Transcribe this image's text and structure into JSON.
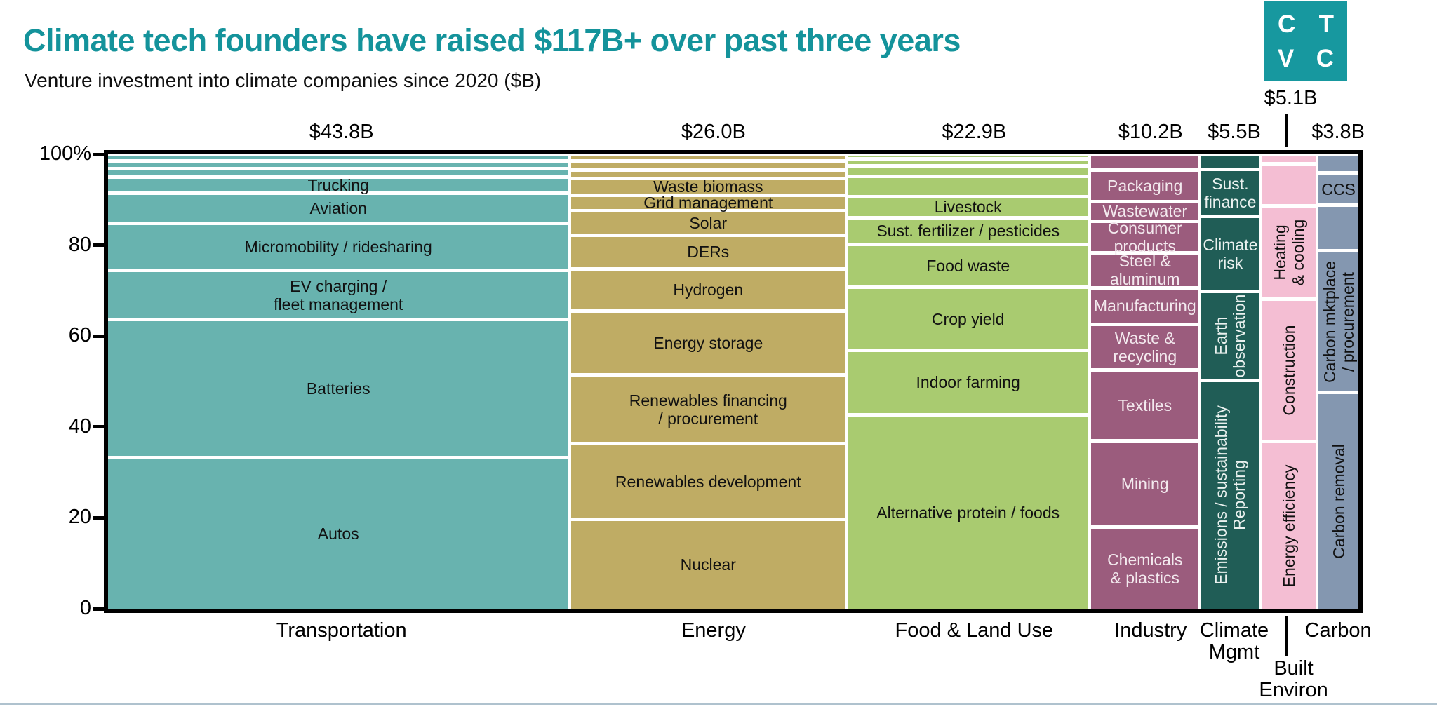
{
  "header": {
    "title": "Climate tech founders have raised $117B+ over past three years",
    "subtitle": "Venture investment into climate companies since 2020 ($B)"
  },
  "logo": {
    "row1_left": "C",
    "row1_right": "T",
    "row2_left": "V",
    "row2_right": "C",
    "bg_color": "#17989F"
  },
  "colors": {
    "title_text": "#14939B",
    "axis_frame": "#000000",
    "footer_rule": "#AFC2CE"
  },
  "y_axis": {
    "tick_labels": [
      "100%",
      "80",
      "60",
      "40",
      "20",
      "0"
    ],
    "tick_values": [
      100,
      80,
      60,
      40,
      20,
      0
    ]
  },
  "callouts": {
    "built_value_label": "$5.1B",
    "built_category_label": "Built\nEnviron"
  },
  "chart_data": {
    "type": "mekko",
    "title": "Climate tech founders have raised $117B+ over past three years",
    "subtitle": "Venture investment into climate companies since 2020 ($B)",
    "x_unit": "column width proportional to $B raised",
    "y_unit": "% of column total",
    "ylim": [
      0,
      100
    ],
    "total_billions": 117.3,
    "columns": [
      {
        "category": "Transportation",
        "value_label": "$43.8B",
        "value": 43.8,
        "color": "#68B3AF",
        "text_color": "#111111",
        "segments": [
          {
            "label": "",
            "pct": 1.8
          },
          {
            "label": "",
            "pct": 1.8
          },
          {
            "label": "",
            "pct": 1.8
          },
          {
            "label": "Trucking",
            "pct": 3.6
          },
          {
            "label": "Aviation",
            "pct": 6.6
          },
          {
            "label": "Micromobility / ridesharing",
            "pct": 10.4
          },
          {
            "label": "EV charging /\nfleet management",
            "pct": 10.7
          },
          {
            "label": "Batteries",
            "pct": 30.4
          },
          {
            "label": "Autos",
            "pct": 32.9
          }
        ]
      },
      {
        "category": "Energy",
        "value_label": "$26.0B",
        "value": 26.0,
        "color": "#BFAC64",
        "text_color": "#111111",
        "segments": [
          {
            "label": "",
            "pct": 1.9
          },
          {
            "label": "",
            "pct": 1.9
          },
          {
            "label": "",
            "pct": 1.9
          },
          {
            "label": "Waste biomass",
            "pct": 3.7
          },
          {
            "label": "Grid management",
            "pct": 3.4
          },
          {
            "label": "Solar",
            "pct": 5.4
          },
          {
            "label": "DERs",
            "pct": 7.4
          },
          {
            "label": "Hydrogen",
            "pct": 9.3
          },
          {
            "label": "Energy storage",
            "pct": 14.0
          },
          {
            "label": "Renewables financing\n/ procurement",
            "pct": 15.2
          },
          {
            "label": "Renewables development",
            "pct": 16.6
          },
          {
            "label": "Nuclear",
            "pct": 19.3
          }
        ]
      },
      {
        "category": "Food & Land Use",
        "value_label": "$22.9B",
        "value": 22.9,
        "color": "#A9CB70",
        "text_color": "#111111",
        "segments": [
          {
            "label": "",
            "pct": 1.4
          },
          {
            "label": "",
            "pct": 1.6
          },
          {
            "label": "",
            "pct": 2.2
          },
          {
            "label": "",
            "pct": 4.5
          },
          {
            "label": "Livestock",
            "pct": 4.6
          },
          {
            "label": "Sust. fertilizer / pesticides",
            "pct": 5.9
          },
          {
            "label": "Food waste",
            "pct": 9.5
          },
          {
            "label": "Crop yield",
            "pct": 13.8
          },
          {
            "label": "Indoor farming",
            "pct": 14.2
          },
          {
            "label": "Alternative protein / foods",
            "pct": 42.3
          }
        ]
      },
      {
        "category": "Industry",
        "value_label": "$10.2B",
        "value": 10.2,
        "color": "#9B5C7D",
        "text_color": "#F3E9EE",
        "segments": [
          {
            "label": "",
            "pct": 3.9
          },
          {
            "label": "Packaging",
            "pct": 6.9
          },
          {
            "label": "Wastewater",
            "pct": 4.3
          },
          {
            "label": "Consumer\nproducts",
            "pct": 6.9
          },
          {
            "label": "Steel &\naluminum",
            "pct": 7.8
          },
          {
            "label": "Manufacturing",
            "pct": 8.0
          },
          {
            "label": "Waste &\nrecycling",
            "pct": 10.1
          },
          {
            "label": "Textiles",
            "pct": 15.5
          },
          {
            "label": "Mining",
            "pct": 19.0
          },
          {
            "label": "Chemicals\n& plastics",
            "pct": 17.6
          }
        ]
      },
      {
        "category": "Climate\nMgmt",
        "value_label": "$5.5B",
        "value": 5.5,
        "color": "#205D56",
        "text_color": "#EAF1EF",
        "segments": [
          {
            "label": "",
            "pct": 3.7
          },
          {
            "label": "Sust.\nfinance",
            "pct": 10.4
          },
          {
            "label": "Climate\nrisk",
            "pct": 16.4
          },
          {
            "label": "Earth\nobservation",
            "pct": 19.6,
            "rotate": true
          },
          {
            "label": "Emissions / sustainability\nReporting",
            "pct": 49.9,
            "rotate": true
          }
        ]
      },
      {
        "category": "Built\nEnviron",
        "value_label": "$5.1B",
        "value": 5.1,
        "color": "#F4BED3",
        "text_color": "#111111",
        "raised_value_label": true,
        "callout_category": true,
        "segments": [
          {
            "label": "",
            "pct": 2.5
          },
          {
            "label": "",
            "pct": 9.2
          },
          {
            "label": "Heating\n& cooling",
            "pct": 20.6,
            "rotate": true
          },
          {
            "label": "Construction",
            "pct": 31.3,
            "rotate": true
          },
          {
            "label": "Energy efficiency",
            "pct": 36.4,
            "rotate": true
          }
        ]
      },
      {
        "category": "Carbon",
        "value_label": "$3.8B",
        "value": 3.8,
        "color": "#8497B0",
        "text_color": "#111111",
        "segments": [
          {
            "label": "",
            "pct": 4.5
          },
          {
            "label": "CCS",
            "pct": 7.1
          },
          {
            "label": "",
            "pct": 10.0
          },
          {
            "label": "Carbon mktplace\n/ procurement",
            "pct": 31.2,
            "rotate": true
          },
          {
            "label": "Carbon removal",
            "pct": 47.2,
            "rotate": true
          }
        ]
      }
    ]
  }
}
